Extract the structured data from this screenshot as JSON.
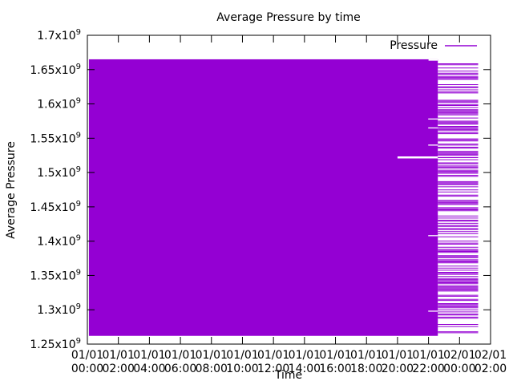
{
  "chart_data": {
    "type": "area",
    "title": "Average Pressure by time",
    "xlabel": "Time",
    "ylabel": "Average Pressure",
    "ylim": [
      1250000000,
      1700000000
    ],
    "y_ticks": [
      {
        "value": 1250000000,
        "mantissa": "1.25",
        "exp": "9"
      },
      {
        "value": 1300000000,
        "mantissa": "1.3",
        "exp": "9"
      },
      {
        "value": 1350000000,
        "mantissa": "1.35",
        "exp": "9"
      },
      {
        "value": 1400000000,
        "mantissa": "1.4",
        "exp": "9"
      },
      {
        "value": 1450000000,
        "mantissa": "1.45",
        "exp": "9"
      },
      {
        "value": 1500000000,
        "mantissa": "1.5",
        "exp": "9"
      },
      {
        "value": 1550000000,
        "mantissa": "1.55",
        "exp": "9"
      },
      {
        "value": 1600000000,
        "mantissa": "1.6",
        "exp": "9"
      },
      {
        "value": 1650000000,
        "mantissa": "1.65",
        "exp": "9"
      },
      {
        "value": 1700000000,
        "mantissa": "1.7",
        "exp": "9"
      }
    ],
    "x_ticks": [
      {
        "hour": 0,
        "date": "01/01",
        "time": "00:00"
      },
      {
        "hour": 2,
        "date": "01/01",
        "time": "02:00"
      },
      {
        "hour": 4,
        "date": "01/01",
        "time": "04:00"
      },
      {
        "hour": 6,
        "date": "01/01",
        "time": "06:00"
      },
      {
        "hour": 8,
        "date": "01/01",
        "time": "08:00"
      },
      {
        "hour": 10,
        "date": "01/01",
        "time": "10:00"
      },
      {
        "hour": 12,
        "date": "01/01",
        "time": "12:00"
      },
      {
        "hour": 14,
        "date": "01/01",
        "time": "14:00"
      },
      {
        "hour": 16,
        "date": "01/01",
        "time": "16:00"
      },
      {
        "hour": 18,
        "date": "01/01",
        "time": "18:00"
      },
      {
        "hour": 20,
        "date": "01/01",
        "time": "20:00"
      },
      {
        "hour": 22,
        "date": "01/01",
        "time": "22:00"
      },
      {
        "hour": 24,
        "date": "02/01",
        "time": "00:00"
      },
      {
        "hour": 26,
        "date": "02/01",
        "time": "02:00"
      }
    ],
    "xlim_hours": [
      0,
      26
    ],
    "grid": false,
    "legend": "top-right",
    "series": [
      {
        "name": "Pressure",
        "color": "#9400d3",
        "dense_block": {
          "x_start_hour": 0.1,
          "x_end_hour": 22.6,
          "y_min": 1262000000,
          "y_max": 1665000000
        },
        "sparse_region": {
          "x_start_hour": 22.6,
          "x_end_hour": 25.2,
          "y_min": 1265000000,
          "y_max": 1660000000
        },
        "step_top": {
          "x_start_hour": 22,
          "x_end_hour": 22.6,
          "y": 1663000000
        },
        "outliers": [
          {
            "x_start_hour": 17.0,
            "x_end_hour": 22.6,
            "y": 1527000000
          },
          {
            "x_start_hour": 20.0,
            "x_end_hour": 22.6,
            "y": 1522000000
          }
        ]
      }
    ]
  }
}
